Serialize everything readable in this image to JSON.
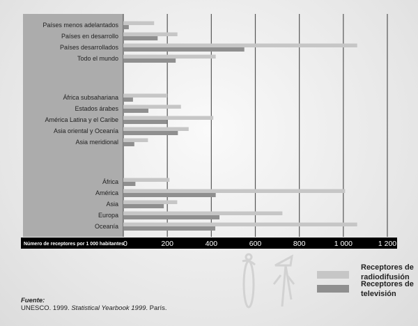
{
  "chart_data": {
    "type": "bar",
    "orientation": "horizontal",
    "xlabel": "Número de receptores por 1 000 habitantes",
    "xlim": [
      0,
      1200
    ],
    "xticks": [
      0,
      200,
      400,
      600,
      800,
      1000,
      1200
    ],
    "xtick_labels": [
      "0",
      "200",
      "400",
      "600",
      "800",
      "1 000",
      "1 200"
    ],
    "grid": true,
    "legend_position": "bottom-right",
    "colors": {
      "radio": "#c6c6c6",
      "tv": "#8f8f8f",
      "label_panel": "#acacac"
    },
    "groups": [
      {
        "categories": [
          "Países menos adelantados",
          "Países en desarrollo",
          "Países desarrollados",
          "Todo el mundo"
        ],
        "radio": [
          140,
          246,
          1063,
          420
        ],
        "tv": [
          25,
          156,
          550,
          238
        ]
      },
      {
        "categories": [
          "África subsahariana",
          "Estados árabes",
          "América Latina y el Caribe",
          "Asia oriental y Oceanía",
          "Asia meridional"
        ],
        "radio": [
          200,
          262,
          409,
          297,
          112
        ],
        "tv": [
          44,
          114,
          198,
          248,
          50
        ]
      },
      {
        "categories": [
          "África",
          "América",
          "Asia",
          "Europa",
          "Oceanía"
        ],
        "radio": [
          210,
          1008,
          245,
          723,
          1063
        ],
        "tv": [
          55,
          420,
          184,
          437,
          418
        ]
      }
    ],
    "series": [
      {
        "key": "radio",
        "name": "Receptores de radiodifusión",
        "name_lines": [
          "Receptores de",
          "radiodifusión"
        ]
      },
      {
        "key": "tv",
        "name": "Receptores de televisión",
        "name_lines": [
          "Receptores de",
          "televisión"
        ]
      }
    ]
  },
  "source": {
    "heading": "Fuente:",
    "prefix": "UNESCO. 1999. ",
    "title": "Statistical Yearbook 1999",
    "suffix": ". París."
  }
}
